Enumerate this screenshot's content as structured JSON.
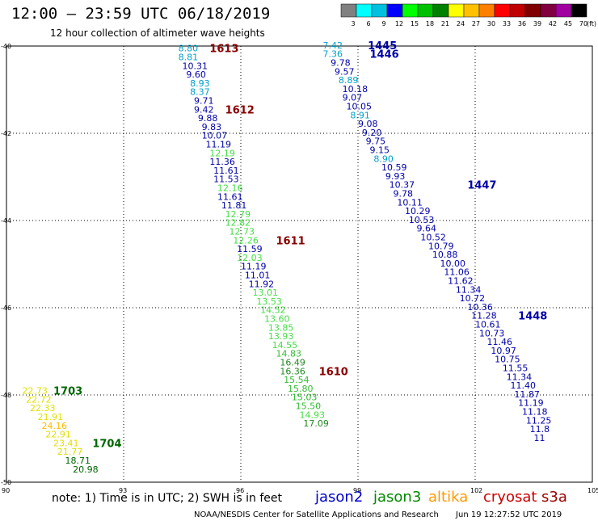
{
  "header": {
    "title": "12:00 – 23:59 UTC 06/18/2019",
    "subtitle": "12 hour collection of altimeter wave heights"
  },
  "scale": {
    "labels": [
      "3",
      "6",
      "9",
      "12",
      "15",
      "18",
      "21",
      "24",
      "27",
      "30",
      "33",
      "36",
      "39",
      "42",
      "45",
      "70"
    ],
    "unit": "(ft)",
    "colors": [
      "#808080",
      "#00ffff",
      "#00c0e0",
      "#0000ff",
      "#00ff00",
      "#00c000",
      "#008000",
      "#ffff00",
      "#ffc000",
      "#ff8000",
      "#ff0000",
      "#c00000",
      "#800000",
      "#800040",
      "#a000a0",
      "#000000"
    ]
  },
  "footer": {
    "note": "note:  1) Time is in UTC;  2) SWH is in feet",
    "credit": "NOAA/NESDIS Center for Satellite Applications and Research",
    "timestamp": "Jun 19 12:27:52 UTC 2019"
  },
  "satellites": [
    {
      "name": "jason2",
      "color": "#0000cc"
    },
    {
      "name": "jason3",
      "color": "#008800"
    },
    {
      "name": "altika",
      "color": "#ff9900"
    },
    {
      "name": "cryosat",
      "color": "#cc0000"
    },
    {
      "name": "s3a",
      "color": "#990000"
    }
  ],
  "chart_data": {
    "type": "scatter",
    "xlim": [
      90,
      105
    ],
    "ylim": [
      -50,
      -40
    ],
    "xticks": [
      "90",
      "93",
      "96",
      "99",
      "102",
      "105"
    ],
    "yticks": [
      "-40",
      "-42",
      "-44",
      "-46",
      "-48",
      "-50"
    ],
    "grid": true,
    "tracks": [
      {
        "label": "1445",
        "label_lon": 99.25,
        "label_lat": -39.98,
        "label_color": "#0000aa",
        "points": [
          {
            "lon": 98.1,
            "lat": -39.98,
            "v": "7.42",
            "c": "#00a0c8"
          },
          {
            "lon": 98.1,
            "lat": -40.18,
            "v": "7.36",
            "c": "#00a0c8"
          },
          {
            "lon": 98.3,
            "lat": -40.38,
            "v": "9.78",
            "c": "#0000aa"
          },
          {
            "lon": 98.4,
            "lat": -40.58,
            "v": "9.57",
            "c": "#0000aa"
          },
          {
            "lon": 98.5,
            "lat": -40.78,
            "v": "8.89",
            "c": "#00a0c8"
          },
          {
            "lon": 98.6,
            "lat": -40.98,
            "v": "10.18",
            "c": "#0000aa"
          },
          {
            "lon": 98.6,
            "lat": -41.18,
            "v": "9.07",
            "c": "#0000aa"
          },
          {
            "lon": 98.7,
            "lat": -41.38,
            "v": "10.05",
            "c": "#0000aa"
          },
          {
            "lon": 98.8,
            "lat": -41.58,
            "v": "8.91",
            "c": "#00a0c8"
          },
          {
            "lon": 99.0,
            "lat": -41.78,
            "v": "9.08",
            "c": "#0000aa"
          },
          {
            "lon": 99.1,
            "lat": -41.98,
            "v": "9.20",
            "c": "#0000aa"
          },
          {
            "lon": 99.2,
            "lat": -42.18,
            "v": "9.75",
            "c": "#0000aa"
          },
          {
            "lon": 99.3,
            "lat": -42.38,
            "v": "9.15",
            "c": "#0000aa"
          },
          {
            "lon": 99.4,
            "lat": -42.58,
            "v": "8.90",
            "c": "#00a0c8"
          },
          {
            "lon": 99.6,
            "lat": -42.78,
            "v": "10.59",
            "c": "#0000aa"
          },
          {
            "lon": 99.7,
            "lat": -42.98,
            "v": "9.93",
            "c": "#0000aa"
          }
        ]
      },
      {
        "label": "1446",
        "label_lon": 99.3,
        "label_lat": -40.18,
        "label_color": "#0000aa",
        "points": []
      },
      {
        "label": "1447",
        "label_lon": 101.8,
        "label_lat": -43.18,
        "label_color": "#0000aa",
        "points": [
          {
            "lon": 99.8,
            "lat": -43.18,
            "v": "10.37",
            "c": "#0000aa"
          },
          {
            "lon": 99.9,
            "lat": -43.38,
            "v": "9.78",
            "c": "#0000aa"
          },
          {
            "lon": 100.0,
            "lat": -43.58,
            "v": "10.11",
            "c": "#0000aa"
          },
          {
            "lon": 100.2,
            "lat": -43.78,
            "v": "10.29",
            "c": "#0000aa"
          },
          {
            "lon": 100.3,
            "lat": -43.98,
            "v": "10.53",
            "c": "#0000aa"
          },
          {
            "lon": 100.5,
            "lat": -44.18,
            "v": "9.64",
            "c": "#0000aa"
          },
          {
            "lon": 100.6,
            "lat": -44.38,
            "v": "10.52",
            "c": "#0000aa"
          },
          {
            "lon": 100.8,
            "lat": -44.58,
            "v": "10.79",
            "c": "#0000aa"
          },
          {
            "lon": 100.9,
            "lat": -44.78,
            "v": "10.88",
            "c": "#0000aa"
          },
          {
            "lon": 101.1,
            "lat": -44.98,
            "v": "10.00",
            "c": "#0000aa"
          },
          {
            "lon": 101.2,
            "lat": -45.18,
            "v": "11.06",
            "c": "#0000aa"
          },
          {
            "lon": 101.3,
            "lat": -45.38,
            "v": "11.62",
            "c": "#0000aa"
          },
          {
            "lon": 101.5,
            "lat": -45.58,
            "v": "11.34",
            "c": "#0000aa"
          },
          {
            "lon": 101.6,
            "lat": -45.78,
            "v": "10.72",
            "c": "#0000aa"
          },
          {
            "lon": 101.8,
            "lat": -45.98,
            "v": "10.36",
            "c": "#0000aa"
          }
        ]
      },
      {
        "label": "1448",
        "label_lon": 103.1,
        "label_lat": -46.18,
        "label_color": "#0000aa",
        "points": [
          {
            "lon": 101.9,
            "lat": -46.18,
            "v": "11.28",
            "c": "#0000aa"
          },
          {
            "lon": 102.0,
            "lat": -46.38,
            "v": "10.61",
            "c": "#0000aa"
          },
          {
            "lon": 102.1,
            "lat": -46.58,
            "v": "10.73",
            "c": "#0000aa"
          },
          {
            "lon": 102.3,
            "lat": -46.78,
            "v": "11.46",
            "c": "#0000aa"
          },
          {
            "lon": 102.4,
            "lat": -46.98,
            "v": "10.97",
            "c": "#0000aa"
          },
          {
            "lon": 102.5,
            "lat": -47.18,
            "v": "10.75",
            "c": "#0000aa"
          },
          {
            "lon": 102.7,
            "lat": -47.38,
            "v": "11.55",
            "c": "#0000aa"
          },
          {
            "lon": 102.8,
            "lat": -47.58,
            "v": "11.34",
            "c": "#0000aa"
          },
          {
            "lon": 102.9,
            "lat": -47.78,
            "v": "11.40",
            "c": "#0000aa"
          },
          {
            "lon": 103.0,
            "lat": -47.98,
            "v": "11.87",
            "c": "#0000aa"
          },
          {
            "lon": 103.1,
            "lat": -48.18,
            "v": "11.19",
            "c": "#0000aa"
          },
          {
            "lon": 103.2,
            "lat": -48.38,
            "v": "11.18",
            "c": "#0000aa"
          },
          {
            "lon": 103.3,
            "lat": -48.58,
            "v": "11.25",
            "c": "#0000aa"
          },
          {
            "lon": 103.4,
            "lat": -48.78,
            "v": "11.8",
            "c": "#0000aa"
          },
          {
            "lon": 103.5,
            "lat": -48.98,
            "v": "11",
            "c": "#0000aa"
          }
        ]
      },
      {
        "label": "1613",
        "label_lon": 95.2,
        "label_lat": -40.05,
        "label_color": "#880000",
        "points": [
          {
            "lon": 94.4,
            "lat": -40.05,
            "v": "8.80",
            "c": "#00a0c8"
          },
          {
            "lon": 94.4,
            "lat": -40.25,
            "v": "8.81",
            "c": "#00a0c8"
          },
          {
            "lon": 94.5,
            "lat": -40.45,
            "v": "10.31",
            "c": "#0000aa"
          },
          {
            "lon": 94.6,
            "lat": -40.65,
            "v": "9.60",
            "c": "#0000aa"
          },
          {
            "lon": 94.7,
            "lat": -40.85,
            "v": "8.93",
            "c": "#00a0c8"
          },
          {
            "lon": 94.7,
            "lat": -41.05,
            "v": "8.37",
            "c": "#00a0c8"
          },
          {
            "lon": 94.8,
            "lat": -41.25,
            "v": "9.71",
            "c": "#0000aa"
          }
        ]
      },
      {
        "label": "1612",
        "label_lon": 95.6,
        "label_lat": -41.45,
        "label_color": "#880000",
        "points": [
          {
            "lon": 94.8,
            "lat": -41.45,
            "v": "9.42",
            "c": "#0000aa"
          },
          {
            "lon": 94.9,
            "lat": -41.65,
            "v": "9.88",
            "c": "#0000aa"
          },
          {
            "lon": 95.0,
            "lat": -41.85,
            "v": "9.83",
            "c": "#0000aa"
          },
          {
            "lon": 95.0,
            "lat": -42.05,
            "v": "10.07",
            "c": "#0000aa"
          },
          {
            "lon": 95.1,
            "lat": -42.25,
            "v": "11.19",
            "c": "#0000aa"
          },
          {
            "lon": 95.2,
            "lat": -42.45,
            "v": "12.19",
            "c": "#44dd44"
          },
          {
            "lon": 95.2,
            "lat": -42.65,
            "v": "11.36",
            "c": "#0000aa"
          },
          {
            "lon": 95.3,
            "lat": -42.85,
            "v": "11.61",
            "c": "#0000aa"
          },
          {
            "lon": 95.3,
            "lat": -43.05,
            "v": "11.53",
            "c": "#0000aa"
          },
          {
            "lon": 95.4,
            "lat": -43.25,
            "v": "12.16",
            "c": "#44dd44"
          },
          {
            "lon": 95.4,
            "lat": -43.45,
            "v": "11.61",
            "c": "#0000aa"
          },
          {
            "lon": 95.5,
            "lat": -43.65,
            "v": "11.81",
            "c": "#0000aa"
          },
          {
            "lon": 95.6,
            "lat": -43.85,
            "v": "12.79",
            "c": "#44dd44"
          },
          {
            "lon": 95.6,
            "lat": -44.05,
            "v": "12.82",
            "c": "#44dd44"
          },
          {
            "lon": 95.7,
            "lat": -44.25,
            "v": "12.73",
            "c": "#44dd44"
          }
        ]
      },
      {
        "label": "1611",
        "label_lon": 96.9,
        "label_lat": -44.45,
        "label_color": "#880000",
        "points": [
          {
            "lon": 95.8,
            "lat": -44.45,
            "v": "12.26",
            "c": "#44dd44"
          },
          {
            "lon": 95.9,
            "lat": -44.65,
            "v": "11.59",
            "c": "#0000aa"
          },
          {
            "lon": 95.9,
            "lat": -44.85,
            "v": "12.03",
            "c": "#44dd44"
          },
          {
            "lon": 96.0,
            "lat": -45.05,
            "v": "11.19",
            "c": "#0000aa"
          },
          {
            "lon": 96.1,
            "lat": -45.25,
            "v": "11.01",
            "c": "#0000aa"
          },
          {
            "lon": 96.2,
            "lat": -45.45,
            "v": "11.92",
            "c": "#0000aa"
          },
          {
            "lon": 96.3,
            "lat": -45.65,
            "v": "13.01",
            "c": "#44dd44"
          },
          {
            "lon": 96.4,
            "lat": -45.85,
            "v": "13.53",
            "c": "#44dd44"
          },
          {
            "lon": 96.5,
            "lat": -46.05,
            "v": "14.52",
            "c": "#44dd44"
          },
          {
            "lon": 96.6,
            "lat": -46.25,
            "v": "13.60",
            "c": "#44dd44"
          },
          {
            "lon": 96.7,
            "lat": -46.45,
            "v": "13.85",
            "c": "#44dd44"
          },
          {
            "lon": 96.7,
            "lat": -46.65,
            "v": "13.93",
            "c": "#44dd44"
          },
          {
            "lon": 96.8,
            "lat": -46.85,
            "v": "14.55",
            "c": "#44dd44"
          },
          {
            "lon": 96.9,
            "lat": -47.05,
            "v": "14.83",
            "c": "#33bb33"
          },
          {
            "lon": 97.0,
            "lat": -47.25,
            "v": "16.49",
            "c": "#228822"
          }
        ]
      },
      {
        "label": "1610",
        "label_lon": 98.0,
        "label_lat": -47.45,
        "label_color": "#880000",
        "points": [
          {
            "lon": 97.0,
            "lat": -47.45,
            "v": "16.36",
            "c": "#228822"
          },
          {
            "lon": 97.1,
            "lat": -47.65,
            "v": "15.54",
            "c": "#33bb33"
          },
          {
            "lon": 97.2,
            "lat": -47.85,
            "v": "15.80",
            "c": "#33bb33"
          },
          {
            "lon": 97.3,
            "lat": -48.05,
            "v": "15.03",
            "c": "#33bb33"
          },
          {
            "lon": 97.4,
            "lat": -48.25,
            "v": "15.50",
            "c": "#33bb33"
          },
          {
            "lon": 97.5,
            "lat": -48.45,
            "v": "14.93",
            "c": "#44dd44"
          },
          {
            "lon": 97.6,
            "lat": -48.65,
            "v": "17.09",
            "c": "#228822"
          }
        ]
      },
      {
        "label": "1703",
        "label_lon": 91.2,
        "label_lat": -47.9,
        "label_color": "#006600",
        "points": [
          {
            "lon": 90.4,
            "lat": -47.9,
            "v": "22.73",
            "c": "#e0e000"
          },
          {
            "lon": 90.5,
            "lat": -48.1,
            "v": "22.72",
            "c": "#e0e000"
          },
          {
            "lon": 90.6,
            "lat": -48.3,
            "v": "22.33",
            "c": "#e0e000"
          },
          {
            "lon": 90.8,
            "lat": -48.5,
            "v": "21.91",
            "c": "#e0e000"
          },
          {
            "lon": 90.9,
            "lat": -48.7,
            "v": "24.16",
            "c": "#ffbb00"
          },
          {
            "lon": 91.0,
            "lat": -48.9,
            "v": "22.91",
            "c": "#e0e000"
          }
        ]
      },
      {
        "label": "1704",
        "label_lon": 92.2,
        "label_lat": -49.1,
        "label_color": "#006600",
        "points": [
          {
            "lon": 91.2,
            "lat": -49.1,
            "v": "23.41",
            "c": "#e0e000"
          },
          {
            "lon": 91.3,
            "lat": -49.3,
            "v": "21.77",
            "c": "#e0e000"
          },
          {
            "lon": 91.5,
            "lat": -49.5,
            "v": "18.71",
            "c": "#006600"
          },
          {
            "lon": 91.7,
            "lat": -49.7,
            "v": "20.98",
            "c": "#006600"
          }
        ]
      }
    ]
  }
}
